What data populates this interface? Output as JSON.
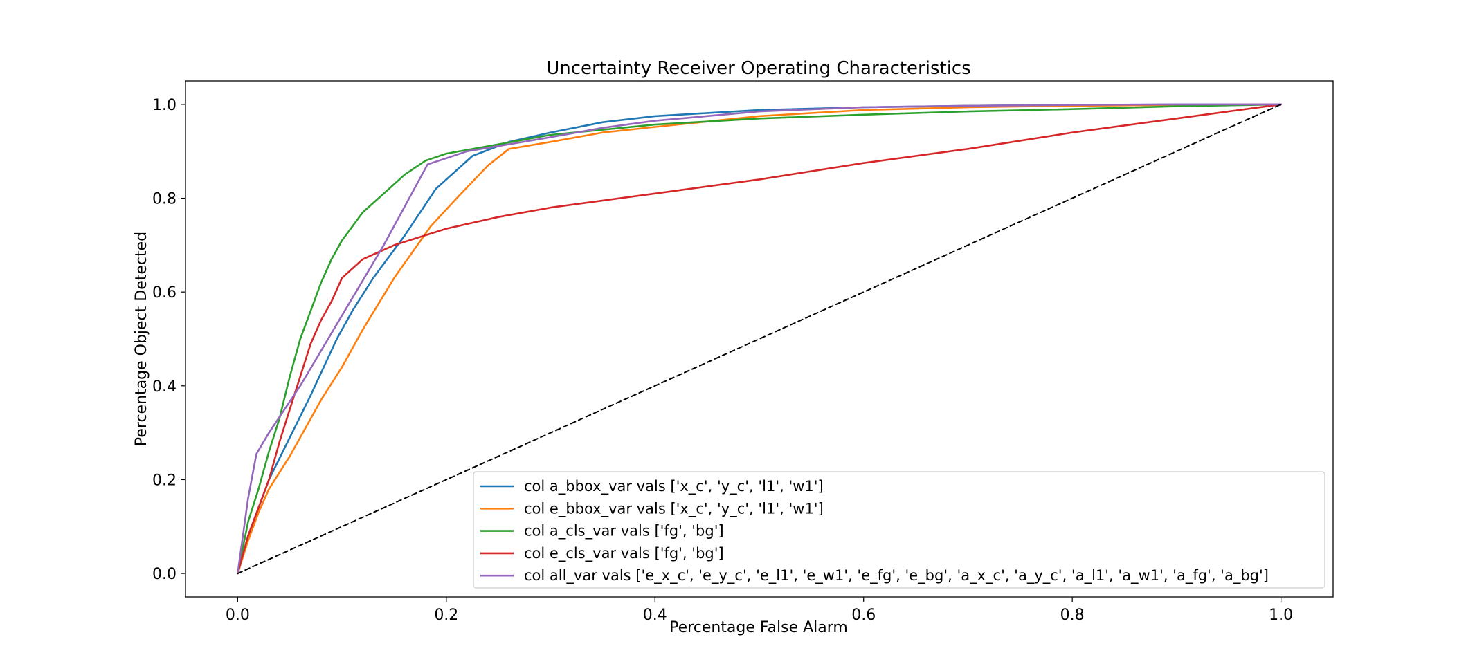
{
  "chart_data": {
    "type": "line",
    "title": "Uncertainty Receiver Operating Characteristics",
    "xlabel": "Percentage False Alarm",
    "ylabel": "Percentage Object Detected",
    "xlim": [
      -0.05,
      1.05
    ],
    "ylim": [
      -0.05,
      1.05
    ],
    "xticks": [
      0.0,
      0.2,
      0.4,
      0.6,
      0.8,
      1.0
    ],
    "yticks": [
      0.0,
      0.2,
      0.4,
      0.6,
      0.8,
      1.0
    ],
    "xtick_labels": [
      "0.0",
      "0.2",
      "0.4",
      "0.6",
      "0.8",
      "1.0"
    ],
    "ytick_labels": [
      "0.0",
      "0.2",
      "0.4",
      "0.6",
      "0.8",
      "1.0"
    ],
    "grid": false,
    "legend_position": "lower-right",
    "series": [
      {
        "name": "col a_bbox_var vals ['x_c', 'y_c', 'l1', 'w1']",
        "color": "#1f77b4",
        "style": "solid",
        "x": [
          0.0,
          0.01,
          0.02,
          0.03,
          0.05,
          0.07,
          0.095,
          0.11,
          0.13,
          0.16,
          0.19,
          0.225,
          0.26,
          0.3,
          0.35,
          0.4,
          0.5,
          0.6,
          0.7,
          0.8,
          0.9,
          1.0
        ],
        "y": [
          0.0,
          0.08,
          0.14,
          0.2,
          0.29,
          0.38,
          0.5,
          0.56,
          0.63,
          0.72,
          0.82,
          0.89,
          0.92,
          0.94,
          0.962,
          0.975,
          0.988,
          0.994,
          0.997,
          0.999,
          1.0,
          1.0
        ]
      },
      {
        "name": "col e_bbox_var vals ['x_c', 'y_c', 'l1', 'w1']",
        "color": "#ff7f0e",
        "style": "solid",
        "x": [
          0.0,
          0.01,
          0.02,
          0.03,
          0.05,
          0.06,
          0.08,
          0.1,
          0.12,
          0.15,
          0.185,
          0.21,
          0.24,
          0.26,
          0.3,
          0.35,
          0.4,
          0.5,
          0.6,
          0.7,
          0.8,
          0.9,
          1.0
        ],
        "y": [
          0.0,
          0.07,
          0.13,
          0.18,
          0.25,
          0.29,
          0.37,
          0.44,
          0.52,
          0.63,
          0.74,
          0.8,
          0.87,
          0.905,
          0.92,
          0.94,
          0.952,
          0.975,
          0.988,
          0.994,
          0.997,
          0.999,
          1.0
        ]
      },
      {
        "name": "col a_cls_var vals ['fg', 'bg']",
        "color": "#2ca02c",
        "style": "solid",
        "x": [
          0.0,
          0.01,
          0.02,
          0.03,
          0.04,
          0.05,
          0.06,
          0.07,
          0.08,
          0.09,
          0.1,
          0.12,
          0.14,
          0.16,
          0.18,
          0.2,
          0.25,
          0.3,
          0.4,
          0.5,
          0.6,
          0.7,
          0.8,
          0.9,
          1.0
        ],
        "y": [
          0.0,
          0.11,
          0.18,
          0.26,
          0.33,
          0.42,
          0.5,
          0.56,
          0.62,
          0.67,
          0.71,
          0.77,
          0.81,
          0.85,
          0.88,
          0.895,
          0.915,
          0.935,
          0.957,
          0.97,
          0.978,
          0.985,
          0.99,
          0.996,
          1.0
        ]
      },
      {
        "name": "col e_cls_var vals ['fg', 'bg']",
        "color": "#d62728",
        "style": "solid",
        "x": [
          0.0,
          0.01,
          0.02,
          0.03,
          0.04,
          0.05,
          0.06,
          0.07,
          0.08,
          0.09,
          0.1,
          0.12,
          0.15,
          0.2,
          0.25,
          0.3,
          0.35,
          0.4,
          0.5,
          0.6,
          0.7,
          0.8,
          0.85,
          0.9,
          0.95,
          1.0
        ],
        "y": [
          0.0,
          0.08,
          0.14,
          0.2,
          0.28,
          0.35,
          0.42,
          0.49,
          0.54,
          0.58,
          0.63,
          0.67,
          0.7,
          0.735,
          0.76,
          0.78,
          0.795,
          0.81,
          0.84,
          0.875,
          0.905,
          0.94,
          0.955,
          0.97,
          0.985,
          1.0
        ]
      },
      {
        "name": "col all_var vals ['e_x_c', 'e_y_c', 'e_l1', 'e_w1', 'e_fg', 'e_bg', 'a_x_c', 'a_y_c', 'a_l1', 'a_w1', 'a_fg', 'a_bg']",
        "color": "#9467bd",
        "style": "solid",
        "x": [
          0.0,
          0.005,
          0.01,
          0.018,
          0.03,
          0.06,
          0.1,
          0.14,
          0.182,
          0.22,
          0.26,
          0.3,
          0.35,
          0.4,
          0.5,
          0.6,
          0.7,
          0.8,
          0.9,
          1.0
        ],
        "y": [
          0.0,
          0.08,
          0.16,
          0.255,
          0.3,
          0.4,
          0.55,
          0.7,
          0.872,
          0.9,
          0.915,
          0.93,
          0.95,
          0.965,
          0.985,
          0.994,
          0.997,
          0.999,
          1.0,
          1.0
        ]
      },
      {
        "name": "",
        "color": "#000000",
        "style": "dashed",
        "x": [
          0.0,
          1.0
        ],
        "y": [
          0.0,
          1.0
        ]
      }
    ]
  }
}
